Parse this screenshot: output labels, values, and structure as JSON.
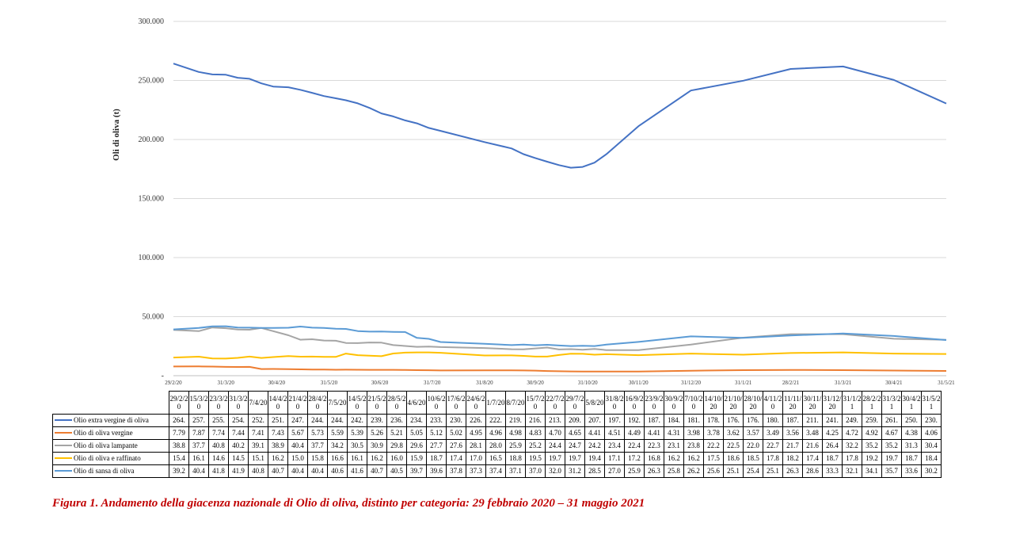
{
  "caption": "Figura 1. Andamento della giacenza nazionale di Olio di oliva, distinto per categoria: 29 febbraio 2020 – 31 maggio 2021",
  "chart_data": {
    "type": "line",
    "title": "",
    "ylabel": "Oli di oliva (t)",
    "xlabel": "",
    "ylim": [
      0,
      300000
    ],
    "ytick_labels": [
      "-",
      "50.000",
      "100.000",
      "150.000",
      "200.000",
      "250.000",
      "300.000"
    ],
    "ytick_values": [
      0,
      50000,
      100000,
      150000,
      200000,
      250000,
      300000
    ],
    "grid": true,
    "legend": "data table below chart",
    "xtick_labels": [
      "29/2/20",
      "31/3/20",
      "30/4/20",
      "31/5/20",
      "30/6/20",
      "31/7/20",
      "31/8/20",
      "30/9/20",
      "31/10/20",
      "30/11/20",
      "31/12/20",
      "31/1/21",
      "28/2/21",
      "31/3/21",
      "30/4/21",
      "31/5/21"
    ],
    "xtick_dates": [
      "2020-02-29",
      "2020-03-31",
      "2020-04-30",
      "2020-05-31",
      "2020-06-30",
      "2020-07-31",
      "2020-08-31",
      "2020-09-30",
      "2020-10-31",
      "2020-11-30",
      "2020-12-31",
      "2021-01-31",
      "2021-02-28",
      "2021-03-31",
      "2021-04-30",
      "2021-05-31"
    ],
    "x_dates": [
      "2020-02-29",
      "2020-03-15",
      "2020-03-23",
      "2020-03-31",
      "2020-04-07",
      "2020-04-14",
      "2020-04-21",
      "2020-04-28",
      "2020-05-07",
      "2020-05-14",
      "2020-05-21",
      "2020-05-28",
      "2020-06-04",
      "2020-06-10",
      "2020-06-17",
      "2020-06-24",
      "2020-07-01",
      "2020-07-08",
      "2020-07-15",
      "2020-07-22",
      "2020-07-29",
      "2020-08-05",
      "2020-08-31",
      "2020-09-16",
      "2020-09-23",
      "2020-09-30",
      "2020-10-07",
      "2020-10-14",
      "2020-10-21",
      "2020-10-28",
      "2020-11-04",
      "2020-11-11",
      "2020-11-30",
      "2020-12-31",
      "2021-01-31",
      "2021-02-28",
      "2021-03-31",
      "2021-04-30",
      "2021-05-31"
    ],
    "x": [
      "29/2/20",
      "15/3/20",
      "23/3/20",
      "31/3/20",
      "7/4/20",
      "14/4/20",
      "21/4/20",
      "28/4/20",
      "7/5/20",
      "14/5/20",
      "21/5/20",
      "28/5/20",
      "4/6/20",
      "10/6/20",
      "17/6/20",
      "24/6/20",
      "1/7/20",
      "8/7/20",
      "15/7/20",
      "22/7/20",
      "29/7/20",
      "5/8/20",
      "31/8/20",
      "16/9/20",
      "23/9/20",
      "30/9/20",
      "7/10/20",
      "14/10/20",
      "21/10/20",
      "28/10/20",
      "4/11/20",
      "11/11/20",
      "30/11/20",
      "31/12/20",
      "31/1/21",
      "28/2/21",
      "31/3/21",
      "30/4/21",
      "31/5/21"
    ],
    "series": [
      {
        "name": "Olio extra vergine di oliva",
        "color": "#4472C4",
        "cells": [
          "264.",
          "257.",
          "255.",
          "254.",
          "252.",
          "251.",
          "247.",
          "244.",
          "244.",
          "242.",
          "239.",
          "236.",
          "234.",
          "233.",
          "230.",
          "226.",
          "222.",
          "219.",
          "216.",
          "213.",
          "209.",
          "207.",
          "197.",
          "192.",
          "187.",
          "184.",
          "181.",
          "178.",
          "176.",
          "176.",
          "180.",
          "187.",
          "211.",
          "241.",
          "249.",
          "259.",
          "261.",
          "250.",
          "230."
        ],
        "values": [
          264300,
          257200,
          255100,
          254800,
          252300,
          251400,
          247500,
          244800,
          244200,
          242100,
          239500,
          236800,
          234900,
          233200,
          230600,
          226700,
          222100,
          219500,
          216200,
          213700,
          209800,
          207300,
          197800,
          192400,
          187600,
          184300,
          181200,
          178300,
          176100,
          176800,
          180400,
          187500,
          211300,
          241500,
          249800,
          259700,
          261800,
          250400,
          230500
        ]
      },
      {
        "name": "Olio di oliva vergine",
        "color": "#ED7D31",
        "cells": [
          "7.79",
          "7.87",
          "7.74",
          "7.44",
          "7.41",
          "7.43",
          "5.67",
          "5.73",
          "5.59",
          "5.39",
          "5.26",
          "5.21",
          "5.05",
          "5.12",
          "5.02",
          "4.95",
          "4.96",
          "4.98",
          "4.83",
          "4.70",
          "4.65",
          "4.41",
          "4.51",
          "4.49",
          "4.41",
          "4.31",
          "3.98",
          "3.78",
          "3.62",
          "3.57",
          "3.49",
          "3.56",
          "3.48",
          "4.25",
          "4.72",
          "4.92",
          "4.67",
          "4.38",
          "4.06"
        ],
        "values": [
          7790,
          7870,
          7740,
          7440,
          7410,
          7430,
          5670,
          5730,
          5590,
          5390,
          5260,
          5210,
          5050,
          5120,
          5020,
          4950,
          4960,
          4980,
          4830,
          4700,
          4650,
          4410,
          4510,
          4490,
          4410,
          4310,
          3980,
          3780,
          3620,
          3570,
          3490,
          3560,
          3480,
          4250,
          4720,
          4920,
          4670,
          4380,
          4060
        ]
      },
      {
        "name": "Olio di oliva lampante",
        "color": "#A5A5A5",
        "cells": [
          "38.8",
          "37.7",
          "40.8",
          "40.2",
          "39.1",
          "38.9",
          "40.4",
          "37.7",
          "34.2",
          "30.5",
          "30.9",
          "29.8",
          "29.6",
          "27.7",
          "27.6",
          "28.1",
          "28.0",
          "25.9",
          "25.2",
          "24.4",
          "24.7",
          "24.2",
          "23.4",
          "22.4",
          "22.3",
          "23.1",
          "23.8",
          "22.2",
          "22.5",
          "22.0",
          "22.7",
          "21.7",
          "21.6",
          "26.4",
          "32.2",
          "35.2",
          "35.2",
          "31.3",
          "30.4"
        ],
        "values": [
          38800,
          37700,
          40800,
          40200,
          39100,
          38900,
          40400,
          37700,
          34200,
          30500,
          30900,
          29800,
          29600,
          27700,
          27600,
          28100,
          28000,
          25900,
          25200,
          24400,
          24700,
          24200,
          23400,
          22400,
          22300,
          23100,
          23800,
          22200,
          22500,
          22000,
          22700,
          21700,
          21600,
          26400,
          32200,
          35200,
          35200,
          31300,
          30400
        ]
      },
      {
        "name": "Olio di oliva e raffinato",
        "color": "#FFC000",
        "cells": [
          "15.4",
          "16.1",
          "14.6",
          "14.5",
          "15.1",
          "16.2",
          "15.0",
          "15.8",
          "16.6",
          "16.1",
          "16.2",
          "16.0",
          "15.9",
          "18.7",
          "17.4",
          "17.0",
          "16.5",
          "18.8",
          "19.5",
          "19.7",
          "19.7",
          "19.4",
          "17.1",
          "17.2",
          "16.8",
          "16.2",
          "16.2",
          "17.5",
          "18.6",
          "18.5",
          "17.8",
          "18.2",
          "17.4",
          "18.7",
          "17.8",
          "19.2",
          "19.7",
          "18.7",
          "18.4"
        ],
        "values": [
          15400,
          16100,
          14600,
          14500,
          15100,
          16200,
          15000,
          15800,
          16600,
          16100,
          16200,
          16000,
          15900,
          18700,
          17400,
          17000,
          16500,
          18800,
          19500,
          19700,
          19700,
          19400,
          17100,
          17200,
          16800,
          16200,
          16200,
          17500,
          18600,
          18500,
          17800,
          18200,
          17400,
          18700,
          17800,
          19200,
          19700,
          18700,
          18400
        ]
      },
      {
        "name": "Olio di sansa di oliva",
        "color": "#5B9BD5",
        "cells": [
          "39.2",
          "40.4",
          "41.8",
          "41.9",
          "40.8",
          "40.7",
          "40.4",
          "40.4",
          "40.6",
          "41.6",
          "40.7",
          "40.5",
          "39.7",
          "39.6",
          "37.8",
          "37.3",
          "37.4",
          "37.1",
          "37.0",
          "32.0",
          "31.2",
          "28.5",
          "27.0",
          "25.9",
          "26.3",
          "25.8",
          "26.2",
          "25.6",
          "25.1",
          "25.4",
          "25.1",
          "26.3",
          "28.6",
          "33.3",
          "32.1",
          "34.1",
          "35.7",
          "33.6",
          "30.2"
        ],
        "values": [
          39200,
          40400,
          41800,
          41900,
          40800,
          40700,
          40400,
          40400,
          40600,
          41600,
          40700,
          40500,
          39700,
          39600,
          37800,
          37300,
          37400,
          37100,
          37000,
          32000,
          31200,
          28500,
          27000,
          25900,
          26300,
          25800,
          26200,
          25600,
          25100,
          25400,
          25100,
          26300,
          28600,
          33300,
          32100,
          34100,
          35700,
          33600,
          30200
        ]
      }
    ]
  }
}
